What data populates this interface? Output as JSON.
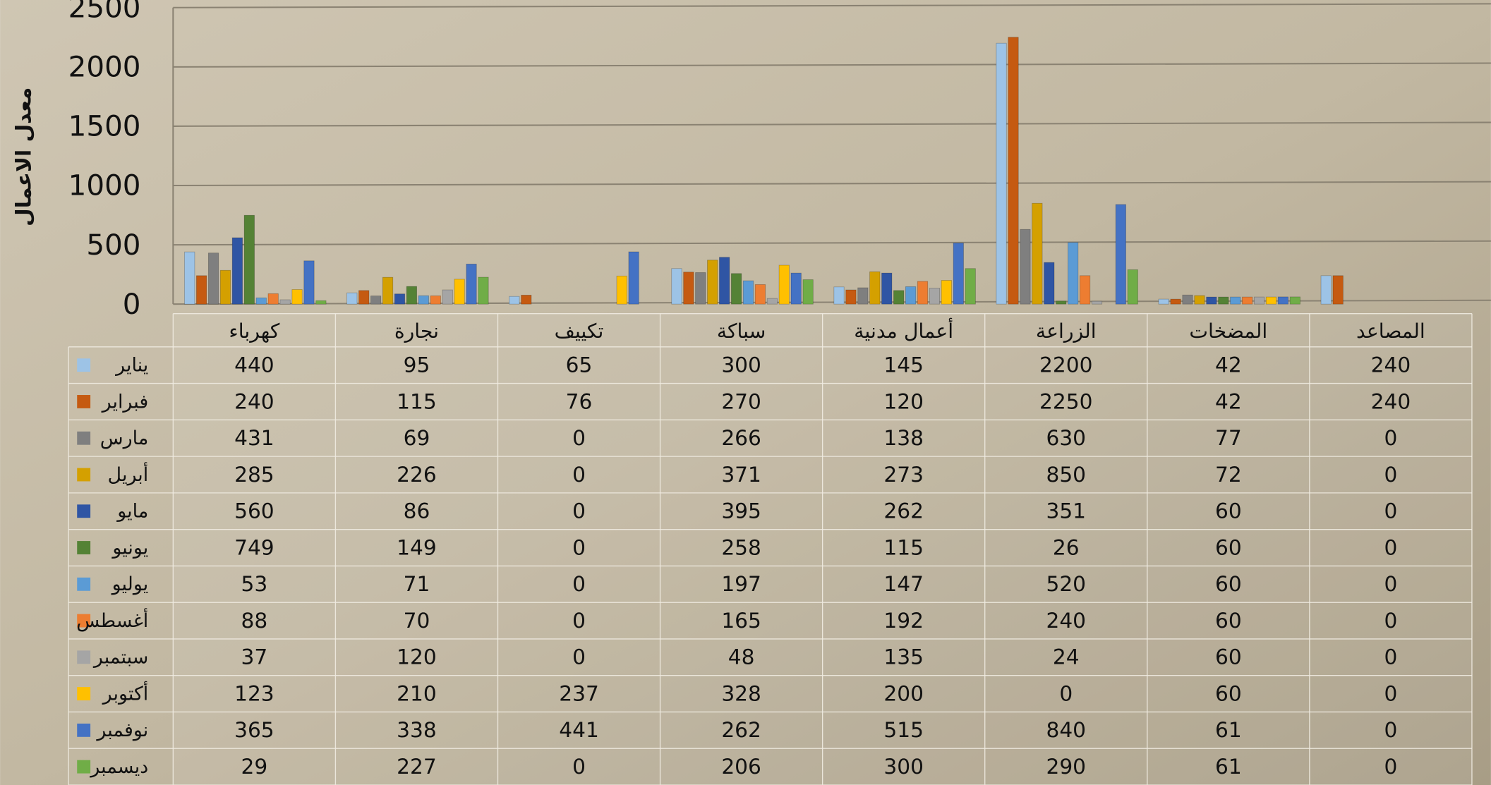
{
  "chart_data": {
    "type": "bar",
    "y_axis_label": "معدل الاعمال",
    "categories": [
      "كهرباء",
      "نجارة",
      "تكييف",
      "سباكة",
      "أعمال مدنية",
      "الزراعة",
      "المضخات",
      "المصاعد"
    ],
    "series": [
      {
        "name": "يناير",
        "color": "#9dc3e6",
        "values": [
          440,
          95,
          65,
          300,
          145,
          2200,
          42,
          240
        ]
      },
      {
        "name": "فبراير",
        "color": "#c55a11",
        "values": [
          240,
          115,
          76,
          270,
          120,
          2250,
          42,
          240
        ]
      },
      {
        "name": "مارس",
        "color": "#7f7f7f",
        "values": [
          431,
          69,
          0,
          266,
          138,
          630,
          77,
          0
        ]
      },
      {
        "name": "أبريل",
        "color": "#d4a000",
        "values": [
          285,
          226,
          0,
          371,
          273,
          850,
          72,
          0
        ]
      },
      {
        "name": "مايو",
        "color": "#2f55a4",
        "values": [
          560,
          86,
          0,
          395,
          262,
          351,
          60,
          0
        ]
      },
      {
        "name": "يونيو",
        "color": "#548235",
        "values": [
          749,
          149,
          0,
          258,
          115,
          26,
          60,
          0
        ]
      },
      {
        "name": "يوليو",
        "color": "#5b9bd5",
        "values": [
          53,
          71,
          0,
          197,
          147,
          520,
          60,
          0
        ]
      },
      {
        "name": "أغسطس",
        "color": "#ed7d31",
        "values": [
          88,
          70,
          0,
          165,
          192,
          240,
          60,
          0
        ]
      },
      {
        "name": "سبتمبر",
        "color": "#a5a5a5",
        "values": [
          37,
          120,
          0,
          48,
          135,
          24,
          60,
          0
        ]
      },
      {
        "name": "أكتوبر",
        "color": "#ffc000",
        "values": [
          123,
          210,
          237,
          328,
          200,
          0,
          60,
          0
        ]
      },
      {
        "name": "نوفمبر",
        "color": "#4472c4",
        "values": [
          365,
          338,
          441,
          262,
          515,
          840,
          61,
          0
        ]
      },
      {
        "name": "ديسمبر",
        "color": "#70ad47",
        "values": [
          29,
          227,
          0,
          206,
          300,
          290,
          61,
          0
        ]
      }
    ],
    "ylim": [
      0,
      2500
    ],
    "yticks": [
      0,
      500,
      1000,
      1500,
      2000,
      2500
    ],
    "grid": true
  }
}
